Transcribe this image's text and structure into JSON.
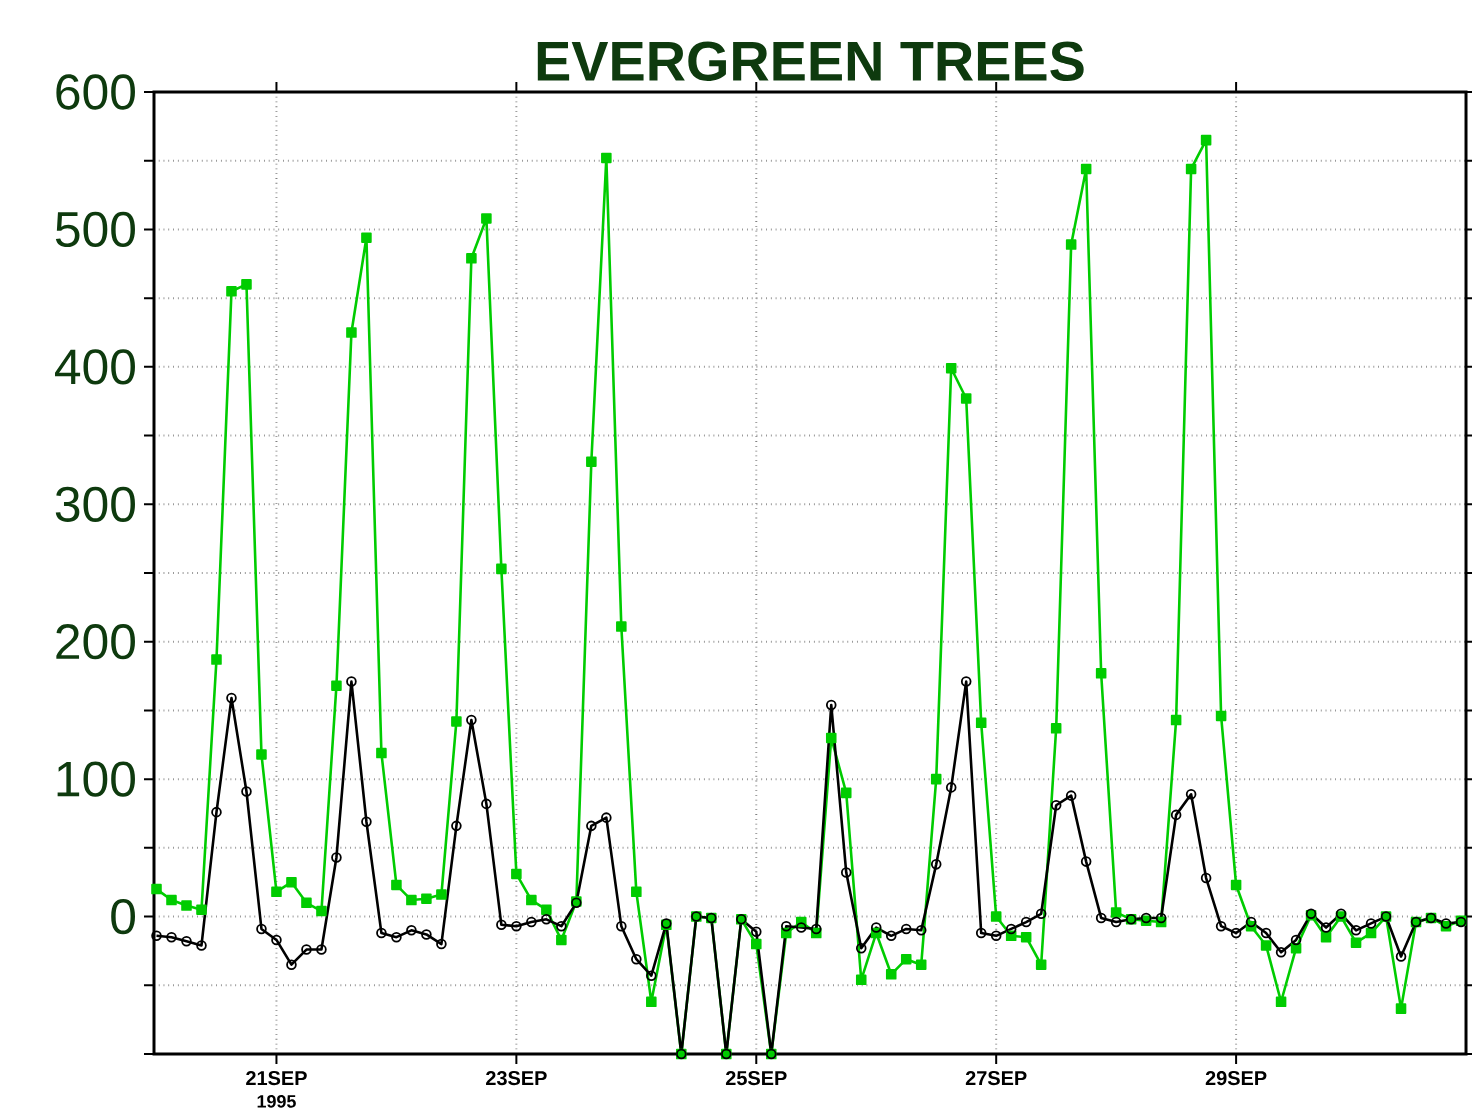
{
  "chart_data": {
    "type": "line",
    "title": "EVERGREEN TREES",
    "annotations": [
      "1995"
    ],
    "x": [
      "1995-09-20T00:00",
      "1995-09-20T03:00",
      "1995-09-20T06:00",
      "1995-09-20T09:00",
      "1995-09-20T12:00",
      "1995-09-20T15:00",
      "1995-09-20T18:00",
      "1995-09-20T21:00",
      "1995-09-21T00:00",
      "1995-09-21T03:00",
      "1995-09-21T06:00",
      "1995-09-21T09:00",
      "1995-09-21T12:00",
      "1995-09-21T15:00",
      "1995-09-21T18:00",
      "1995-09-21T21:00",
      "1995-09-22T00:00",
      "1995-09-22T03:00",
      "1995-09-22T06:00",
      "1995-09-22T09:00",
      "1995-09-22T12:00",
      "1995-09-22T15:00",
      "1995-09-22T18:00",
      "1995-09-22T21:00",
      "1995-09-23T00:00",
      "1995-09-23T03:00",
      "1995-09-23T06:00",
      "1995-09-23T09:00",
      "1995-09-23T12:00",
      "1995-09-23T15:00",
      "1995-09-23T18:00",
      "1995-09-23T21:00",
      "1995-09-24T00:00",
      "1995-09-24T03:00",
      "1995-09-24T06:00",
      "1995-09-24T09:00",
      "1995-09-24T12:00",
      "1995-09-24T15:00",
      "1995-09-24T18:00",
      "1995-09-24T21:00",
      "1995-09-25T00:00",
      "1995-09-25T03:00",
      "1995-09-25T06:00",
      "1995-09-25T09:00",
      "1995-09-25T12:00",
      "1995-09-25T15:00",
      "1995-09-25T18:00",
      "1995-09-25T21:00",
      "1995-09-26T00:00",
      "1995-09-26T03:00",
      "1995-09-26T06:00",
      "1995-09-26T09:00",
      "1995-09-26T12:00",
      "1995-09-26T15:00",
      "1995-09-26T18:00",
      "1995-09-26T21:00",
      "1995-09-27T00:00",
      "1995-09-27T03:00",
      "1995-09-27T06:00",
      "1995-09-27T09:00",
      "1995-09-27T12:00",
      "1995-09-27T15:00",
      "1995-09-27T18:00",
      "1995-09-27T21:00",
      "1995-09-28T00:00",
      "1995-09-28T03:00",
      "1995-09-28T06:00",
      "1995-09-28T09:00",
      "1995-09-28T12:00",
      "1995-09-28T15:00",
      "1995-09-28T18:00",
      "1995-09-28T21:00",
      "1995-09-29T00:00",
      "1995-09-29T03:00",
      "1995-09-29T06:00",
      "1995-09-29T09:00",
      "1995-09-29T12:00",
      "1995-09-29T15:00",
      "1995-09-29T18:00",
      "1995-09-29T21:00",
      "1995-09-30T00:00",
      "1995-09-30T03:00",
      "1995-09-30T06:00",
      "1995-09-30T09:00",
      "1995-09-30T12:00",
      "1995-09-30T15:00",
      "1995-09-30T18:00",
      "1995-09-30T21:00"
    ],
    "series": [
      {
        "color": "#00cc00",
        "marker": "square",
        "values": [
          20,
          12,
          8,
          5,
          187,
          455,
          460,
          118,
          18,
          25,
          10,
          4,
          168,
          425,
          494,
          119,
          23,
          12,
          13,
          16,
          142,
          479,
          508,
          253,
          31,
          12,
          5,
          -17,
          11,
          331,
          552,
          211,
          18,
          -62,
          -6,
          -100,
          0,
          -1,
          -100,
          -2,
          -20,
          -100,
          -12,
          -4,
          -12,
          130,
          90,
          -46,
          -12,
          -42,
          -31,
          -35,
          100,
          399,
          377,
          141,
          0,
          -14,
          -15,
          -35,
          137,
          489,
          544,
          177,
          3,
          -2,
          -3,
          -4,
          143,
          544,
          565,
          146,
          23,
          -7,
          -21,
          -62,
          -23,
          1,
          -15,
          0,
          -19,
          -12,
          0,
          -67,
          -4,
          -1,
          -7,
          -3
        ]
      },
      {
        "color": "#000000",
        "marker": "circle",
        "values": [
          -14,
          -15,
          -18,
          -21,
          76,
          159,
          91,
          -9,
          -17,
          -35,
          -24,
          -24,
          43,
          171,
          69,
          -12,
          -15,
          -10,
          -13,
          -20,
          66,
          143,
          82,
          -6,
          -7,
          -4,
          -2,
          -7,
          10,
          66,
          72,
          -7,
          -31,
          -43,
          -5,
          -100,
          0,
          -1,
          -100,
          -2,
          -11,
          -100,
          -7,
          -8,
          -9,
          154,
          32,
          -23,
          -8,
          -14,
          -9,
          -10,
          38,
          94,
          171,
          -12,
          -14,
          -9,
          -4,
          2,
          81,
          88,
          40,
          -1,
          -4,
          -2,
          -1,
          -1,
          74,
          89,
          28,
          -7,
          -12,
          -4,
          -12,
          -26,
          -17,
          2,
          -8,
          2,
          -10,
          -5,
          0,
          -29,
          -4,
          -1,
          -5,
          -4
        ]
      }
    ],
    "xlim": [
      "1995-09-19T23:30",
      "1995-09-30T22:00"
    ],
    "xticks": [
      {
        "value": "1995-09-21",
        "label": "21SEP"
      },
      {
        "value": "1995-09-23",
        "label": "23SEP"
      },
      {
        "value": "1995-09-25",
        "label": "25SEP"
      },
      {
        "value": "1995-09-27",
        "label": "27SEP"
      },
      {
        "value": "1995-09-29",
        "label": "29SEP"
      }
    ],
    "ylim": [
      -100,
      600
    ],
    "yticks": [
      {
        "value": -100,
        "label": null
      },
      {
        "value": -50,
        "label": null
      },
      0,
      {
        "value": 50,
        "label": null
      },
      100,
      {
        "value": 150,
        "label": null
      },
      200,
      {
        "value": 250,
        "label": null
      },
      300,
      {
        "value": 350,
        "label": null
      },
      400,
      {
        "value": 450,
        "label": null
      },
      500,
      {
        "value": 550,
        "label": null
      },
      600
    ],
    "grid": true
  }
}
